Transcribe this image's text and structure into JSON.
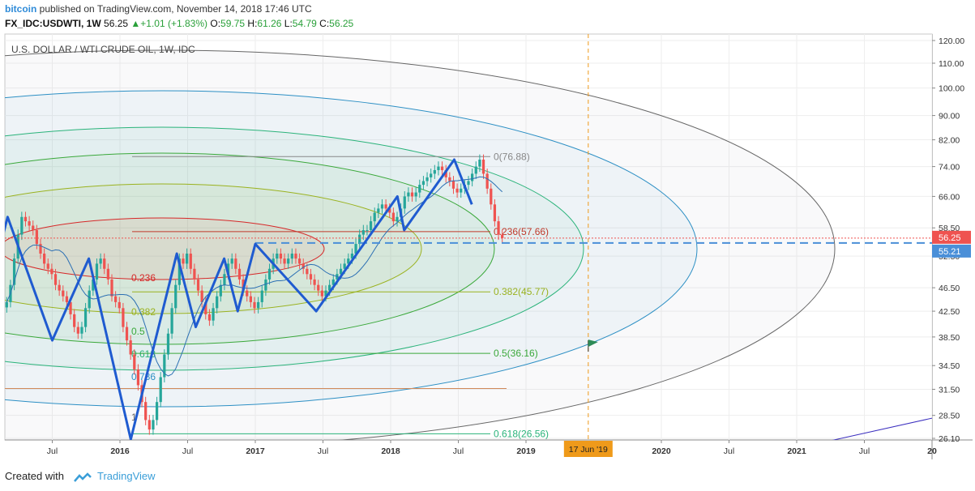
{
  "header": {
    "author": "bitcoin",
    "published": "published on TradingView.com, November 14, 2018 17:46 UTC",
    "symbol": "FX_IDC:USDWTI, 1W",
    "last": "56.25",
    "change": "+1.01 (+1.83%)",
    "open_label": "O:",
    "open": "59.75",
    "high_label": "H:",
    "high": "61.26",
    "low_label": "L:",
    "low": "54.79",
    "close_label": "C:",
    "close": "56.25"
  },
  "footer": {
    "created_with": "Created with",
    "brand": "TradingView"
  },
  "colors": {
    "up": "#26a69a",
    "down": "#ef5350",
    "zigzag": "#1f5bd0",
    "ma": "#2b6fb3",
    "marker": "#ef9a1a"
  },
  "chart_data": {
    "type": "candlestick",
    "title": "U.S. DOLLAR / WTI CRUDE OIL, 1W, IDC",
    "y_axis": {
      "ticks": [
        "120.00",
        "110.00",
        "100.00",
        "90.00",
        "82.00",
        "74.00",
        "66.00",
        "58.50",
        "52.50",
        "46.50",
        "42.50",
        "38.50",
        "34.50",
        "31.50",
        "28.50",
        "26.10"
      ]
    },
    "x_axis": {
      "ticks": [
        "Jul",
        "2016",
        "Jul",
        "2017",
        "Jul",
        "2018",
        "Jul",
        "2019",
        "2020",
        "Jul",
        "2021",
        "Jul",
        "20"
      ]
    },
    "price_labels": [
      {
        "value": "56.25",
        "color": "#ef5350"
      },
      {
        "value": "55.21",
        "color": "#4a8fd8"
      }
    ],
    "marker_label": "17 Jun '19",
    "fib_levels": [
      {
        "label": "0(76.88)",
        "value": 76.88
      },
      {
        "label": "0.236(57.66)",
        "value": 57.66
      },
      {
        "label": "0.382(45.77)",
        "value": 45.77
      },
      {
        "label": "0.5(36.16)",
        "value": 36.16
      },
      {
        "label": "0.618(26.56)",
        "value": 26.56
      }
    ],
    "fib_ellipse_labels": [
      "0.236",
      "0.382",
      "0.5",
      "0.618",
      "0.786",
      "1"
    ],
    "zigzag": [
      {
        "t": 0.0,
        "v": 43
      },
      {
        "t": 0.17,
        "v": 61
      },
      {
        "t": 0.5,
        "v": 38
      },
      {
        "t": 0.77,
        "v": 52
      },
      {
        "t": 1.08,
        "v": 26
      },
      {
        "t": 1.42,
        "v": 53
      },
      {
        "t": 1.56,
        "v": 40
      },
      {
        "t": 1.77,
        "v": 52
      },
      {
        "t": 1.87,
        "v": 42.5
      },
      {
        "t": 2.0,
        "v": 55
      },
      {
        "t": 2.45,
        "v": 42.5
      },
      {
        "t": 3.05,
        "v": 66
      },
      {
        "t": 3.1,
        "v": 58
      },
      {
        "t": 3.47,
        "v": 76
      },
      {
        "t": 3.6,
        "v": 64
      }
    ],
    "candles_close": [
      44,
      47,
      52,
      57,
      61,
      60,
      59,
      58,
      55,
      53,
      51,
      50,
      49,
      47,
      46,
      45,
      44,
      42,
      40,
      39,
      40,
      43,
      46,
      48,
      51,
      52,
      50,
      48,
      45,
      44,
      43,
      40,
      38,
      36,
      34,
      32,
      30,
      28,
      27,
      28,
      30,
      33,
      36,
      39,
      43,
      47,
      52,
      51,
      53,
      50,
      48,
      46,
      44,
      42,
      41,
      43,
      45,
      47,
      49,
      51,
      52,
      50,
      48,
      46,
      45,
      44,
      43,
      44,
      46,
      48,
      50,
      52,
      53,
      52,
      51,
      52,
      53,
      52,
      51,
      50,
      49,
      48,
      47,
      46,
      45,
      46,
      47,
      48,
      49,
      50,
      51,
      52,
      53,
      55,
      57,
      58,
      58,
      60,
      62,
      63,
      64,
      63,
      62,
      60,
      61,
      63,
      66,
      67,
      66,
      67,
      69,
      70,
      71,
      72,
      73,
      74,
      73,
      71,
      70,
      68,
      67,
      68,
      69,
      70,
      72,
      74,
      76,
      72,
      68,
      64,
      60,
      57,
      56.25
    ]
  }
}
